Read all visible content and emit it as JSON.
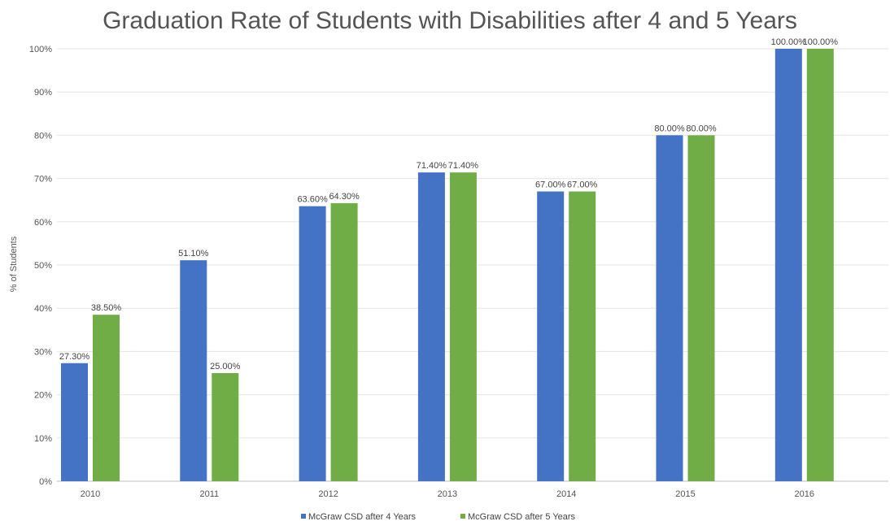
{
  "chart_data": {
    "type": "bar",
    "title": "Graduation Rate of Students with Disabilities after 4 and 5 Years",
    "xlabel": "",
    "ylabel": "% of Students",
    "ylim": [
      0,
      100
    ],
    "yticks": [
      "0%",
      "10%",
      "20%",
      "30%",
      "40%",
      "50%",
      "60%",
      "70%",
      "80%",
      "90%",
      "100%"
    ],
    "categories": [
      "2010",
      "2011",
      "2012",
      "2013",
      "2014",
      "2015",
      "2016"
    ],
    "grid": true,
    "legend_position": "bottom",
    "series": [
      {
        "name": "McGraw CSD after 4 Years",
        "color": "#4472c4",
        "values": [
          27.3,
          51.1,
          63.6,
          71.4,
          67.0,
          80.0,
          100.0
        ],
        "labels": [
          "27.30%",
          "51.10%",
          "63.60%",
          "71.40%",
          "67.00%",
          "80.00%",
          "100.00%"
        ]
      },
      {
        "name": "McGraw CSD after 5 Years",
        "color": "#70ad47",
        "values": [
          38.5,
          25.0,
          64.3,
          71.4,
          67.0,
          80.0,
          100.0
        ],
        "labels": [
          "38.50%",
          "25.00%",
          "64.30%",
          "71.40%",
          "67.00%",
          "80.00%",
          "100.00%"
        ]
      }
    ]
  }
}
